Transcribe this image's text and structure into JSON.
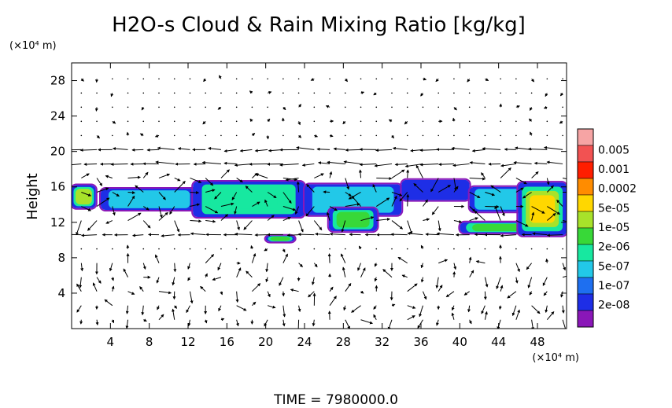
{
  "chart_data": {
    "type": "heatmap",
    "title": "H2O-s Cloud & Rain Mixing Ratio [kg/kg]",
    "ylabel": "Height",
    "y_unit_label": "(×10⁴ m)",
    "x_unit_label": "(×10⁴ m)",
    "x_ticks": [
      4,
      8,
      12,
      16,
      20,
      24,
      28,
      32,
      36,
      40,
      44,
      48
    ],
    "y_ticks": [
      4,
      8,
      12,
      16,
      20,
      24,
      28
    ],
    "xlim": [
      0,
      51
    ],
    "ylim": [
      0,
      30
    ],
    "colorbar_labels": [
      "0.005",
      "0.001",
      "0.0002",
      "5e-05",
      "1e-05",
      "2e-06",
      "5e-07",
      "1e-07",
      "2e-08"
    ],
    "colorbar_colors": [
      "#f6a4a4",
      "#f25252",
      "#ff1e00",
      "#ff8c00",
      "#ffd700",
      "#a8e22a",
      "#38d838",
      "#17e8a0",
      "#22c8e8",
      "#1e6ff0",
      "#1e2ee6",
      "#8a17b8"
    ],
    "cloud_regions": [
      {
        "x": 0.0,
        "y": 13.6,
        "w": 2.5,
        "h": 2.6,
        "level": 6
      },
      {
        "x": 3.0,
        "y": 13.4,
        "w": 10.0,
        "h": 2.4,
        "level": 3
      },
      {
        "x": 12.5,
        "y": 12.6,
        "w": 11.5,
        "h": 4.0,
        "level": 4
      },
      {
        "x": 24.0,
        "y": 12.8,
        "w": 10.0,
        "h": 3.5,
        "level": 3
      },
      {
        "x": 26.5,
        "y": 11.0,
        "w": 5.0,
        "h": 2.6,
        "level": 5
      },
      {
        "x": 34.0,
        "y": 14.5,
        "w": 7.0,
        "h": 2.3,
        "level": 1
      },
      {
        "x": 41.0,
        "y": 13.2,
        "w": 6.5,
        "h": 2.8,
        "level": 3
      },
      {
        "x": 40.0,
        "y": 10.8,
        "w": 8.0,
        "h": 1.2,
        "level": 5
      },
      {
        "x": 46.0,
        "y": 10.5,
        "w": 5.0,
        "h": 6.0,
        "level": 7
      },
      {
        "x": 20.0,
        "y": 9.8,
        "w": 3.0,
        "h": 0.7,
        "level": 5
      }
    ],
    "wind_arrows": "sampled field (decorative reproduction)"
  },
  "footer": {
    "time_label": "TIME = 7980000.0"
  }
}
